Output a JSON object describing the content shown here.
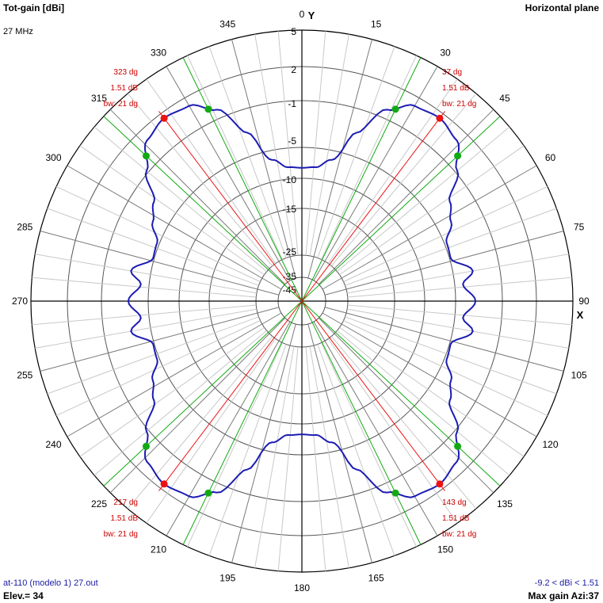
{
  "header": {
    "quantity": "Tot-gain [dBi]",
    "frequency": "27 MHz",
    "plane": "Horizontal plane"
  },
  "footer": {
    "file": "at-110 (modelo 1) 27.out",
    "elevation": "Elev.= 34",
    "gain_range": "-9.2 < dBi < 1.51",
    "max_gain": "Max gain Azi:37"
  },
  "colors": {
    "pattern": "#1c1cb4",
    "grid": "#808080",
    "axes": "#000000",
    "max_marker": "#ee1111",
    "bw_marker": "#11aa11",
    "annotation": "#cc0000"
  },
  "chart_data": {
    "type": "polar",
    "title": "Tot-gain [dBi]",
    "grid": true,
    "axis_labels": [
      "X",
      "Y"
    ],
    "angle_ticks": [
      0,
      15,
      30,
      45,
      60,
      75,
      90,
      105,
      120,
      135,
      150,
      165,
      180,
      195,
      210,
      225,
      240,
      255,
      270,
      285,
      300,
      315,
      330,
      345
    ],
    "ring_labels": [
      "5",
      "2",
      "-1",
      "-5",
      "-10",
      "-15",
      "-25",
      "-35",
      "-45"
    ],
    "ring_values": [
      5,
      2,
      -1,
      -5,
      -10,
      -15,
      -25,
      -35,
      -45
    ],
    "pattern": {
      "azimuth_deg": [
        0,
        6,
        12,
        18,
        24,
        30,
        37,
        44,
        50,
        56,
        62,
        68,
        74,
        80,
        84,
        90
      ],
      "gain_dbi": [
        -8.3,
        -8.1,
        -6.5,
        -3.0,
        -0.2,
        1.2,
        1.51,
        1.0,
        -0.8,
        -2.9,
        -3.7,
        -4.8,
        -4.9,
        -3.3,
        -4.3,
        -3.3
      ],
      "symmetry": "mirrored about both axes"
    },
    "max_gain": [
      {
        "azimuth_deg": 37,
        "gain_db": 1.51,
        "bw_deg": 21,
        "labels": [
          "37 dg",
          "1.51 dB",
          "bw: 21 dg"
        ]
      },
      {
        "azimuth_deg": 143,
        "gain_db": 1.51,
        "bw_deg": 21,
        "labels": [
          "143 dg",
          "1.51 dB",
          "bw: 21 dg"
        ]
      },
      {
        "azimuth_deg": 217,
        "gain_db": 1.51,
        "bw_deg": 21,
        "labels": [
          "217 dg",
          "1.51 dB",
          "bw: 21 dg"
        ]
      },
      {
        "azimuth_deg": 323,
        "gain_db": 1.51,
        "bw_deg": 21,
        "labels": [
          "323 dg",
          "1.51 dB",
          "bw: 21 dg"
        ]
      }
    ],
    "beamwidth_edges_deg": [
      26,
      47,
      133,
      154,
      206,
      227,
      313,
      334
    ]
  }
}
